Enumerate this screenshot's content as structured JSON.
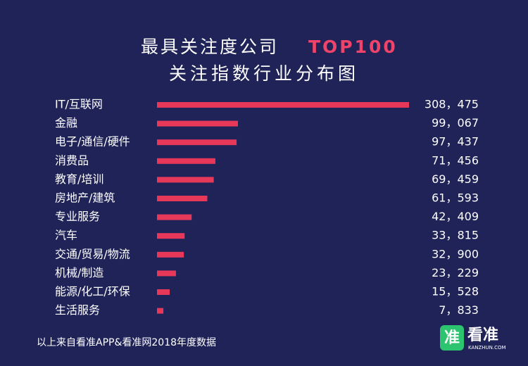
{
  "chart_data": {
    "type": "hbar",
    "title": "最具关注度公司",
    "title_highlight": "TOP100",
    "subtitle": "关注指数行业分布图",
    "categories": [
      "IT/互联网",
      "金融",
      "电子/通信/硬件",
      "消费品",
      "教育/培训",
      "房地产/建筑",
      "专业服务",
      "汽车",
      "交通/贸易/物流",
      "机械/制造",
      "能源/化工/环保",
      "生活服务"
    ],
    "values": [
      308475,
      99067,
      97437,
      71456,
      69459,
      61593,
      42409,
      33815,
      32900,
      23229,
      15528,
      7833
    ],
    "value_labels": [
      "308，475",
      "99，067",
      "97，437",
      "71，456",
      "69，459",
      "61，593",
      "42，409",
      "33，815",
      "32，900",
      "23，229",
      "15，528",
      "7，833"
    ],
    "color": "#e8385a",
    "title_highlight_color": "#f0436a",
    "source": "以上来自看准APP&看准网2018年度数据",
    "logo": {
      "icon": "准",
      "name": "看准",
      "site": "KANZHUN.COM"
    }
  }
}
